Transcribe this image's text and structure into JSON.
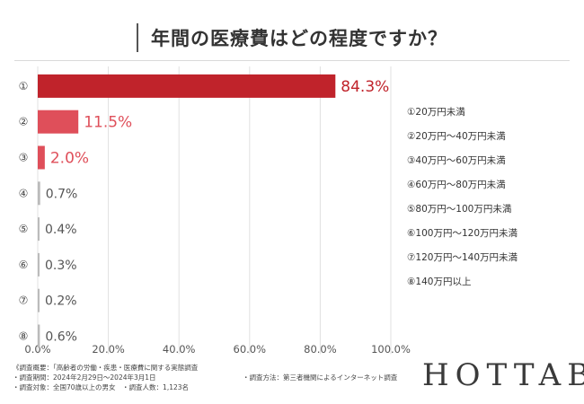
{
  "title": "年間の医療費はどの程度ですか？",
  "chart_data": {
    "type": "bar",
    "orientation": "horizontal",
    "categories": [
      "①",
      "②",
      "③",
      "④",
      "⑤",
      "⑥",
      "⑦",
      "⑧"
    ],
    "values": [
      84.3,
      11.5,
      2.0,
      0.7,
      0.4,
      0.3,
      0.2,
      0.6
    ],
    "value_labels": [
      "84.3%",
      "11.5%",
      "2.0%",
      "0.7%",
      "0.4%",
      "0.3%",
      "0.2%",
      "0.6%"
    ],
    "bar_colors": [
      "#c0232b",
      "#df4f5a",
      "#df4f5a",
      "#bbbbbb",
      "#bbbbbb",
      "#bbbbbb",
      "#bbbbbb",
      "#bbbbbb"
    ],
    "label_colors": [
      "#c0232b",
      "#df4f5a",
      "#df4f5a",
      "#555555",
      "#555555",
      "#555555",
      "#555555",
      "#555555"
    ],
    "xlim": [
      0,
      100
    ],
    "x_ticks": [
      "0.0%",
      "20.0%",
      "40.0%",
      "60.0%",
      "80.0%",
      "100.0%"
    ],
    "grid": true,
    "legend": [
      "①20万円未満",
      "②20万円～40万円未満",
      "③40万円～60万円未満",
      "④60万円～80万円未満",
      "⑤80万円～100万円未満",
      "⑥100万円～120万円未満",
      "⑦120万円～140万円未満",
      "⑧140万円以上"
    ]
  },
  "footer": {
    "line1": "《調査概要：「高齢者の労働・疾患・医療費に関する実態調査",
    "line2": "・調査期間：2024年2月29日～2024年3月1日",
    "line3": "・調査対象：全国70歳以上の男女　・調査人数：1,123名",
    "method": "・調査方法：第三者機関によるインターネット調査"
  },
  "brand": "HOTTAB"
}
